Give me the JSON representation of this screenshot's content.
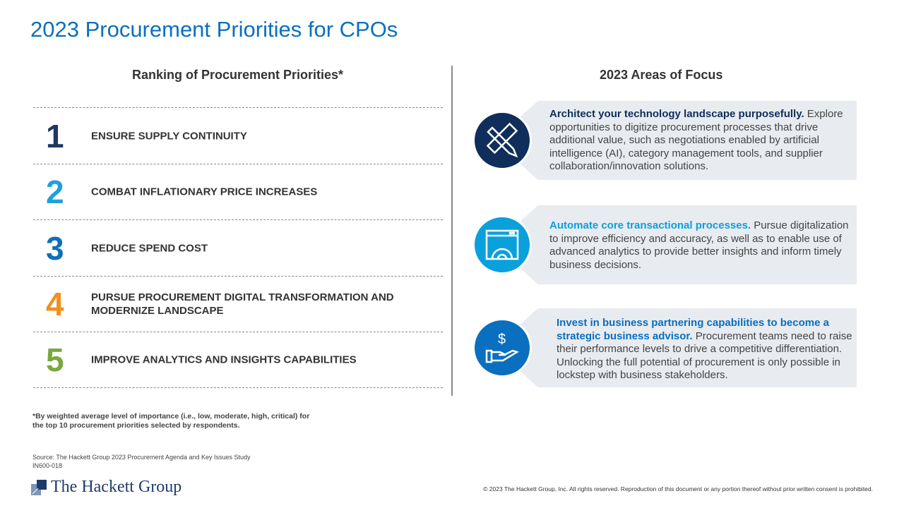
{
  "title": "2023 Procurement Priorities for CPOs",
  "left": {
    "heading": "Ranking of Procurement Priorities*",
    "ranks": [
      {
        "number": "1",
        "label": "ENSURE SUPPLY CONTINUITY",
        "color": "#1f3864"
      },
      {
        "number": "2",
        "label": "COMBAT INFLATIONARY PRICE INCREASES",
        "color": "#1ea0dc"
      },
      {
        "number": "3",
        "label": "REDUCE SPEND COST",
        "color": "#0e6fb8"
      },
      {
        "number": "4",
        "label": "PURSUE PROCUREMENT DIGITAL TRANSFORMATION AND MODERNIZE LANDSCAPE",
        "color": "#f0901e"
      },
      {
        "number": "5",
        "label": "IMPROVE ANALYTICS AND INSIGHTS CAPABILITIES",
        "color": "#7aa83c"
      }
    ]
  },
  "right": {
    "heading": "2023 Areas of Focus",
    "items": [
      {
        "icon": "ruler-pencil-icon",
        "color": "#0f2e5c",
        "lead": "Architect your technology landscape purposefully.",
        "body": " Explore opportunities to digitize procurement processes that drive additional value, such as negotiations enabled by artificial intelligence (AI), category management tools, and supplier collaboration/innovation solutions."
      },
      {
        "icon": "browser-gear-icon",
        "color": "#0aa0dc",
        "lead": "Automate core transactional processes.",
        "body": " Pursue digitalization to improve efficiency and accuracy, as well as to enable use of advanced analytics to provide better insights and inform timely business decisions."
      },
      {
        "icon": "hand-dollar-icon",
        "color": "#0a6fbf",
        "lead": "Invest in business partnering capabilities to become a strategic business advisor.",
        "body": " Procurement teams need to raise their performance levels to drive a competitive differentiation. Unlocking the full potential of procurement is only possible in lockstep with business stakeholders."
      }
    ]
  },
  "footnote": "*By weighted average level of importance (i.e., low, moderate, high, critical) for the top 10 procurement priorities selected by respondents.",
  "source": "Source: The Hackett Group 2023 Procurement Agenda and Key Issues Study",
  "code": "IN600-018",
  "logo": "The Hackett Group",
  "copyright": "© 2023 The Hackett Group, Inc. All rights reserved. Reproduction of this document or any portion thereof without prior written consent is prohibited."
}
